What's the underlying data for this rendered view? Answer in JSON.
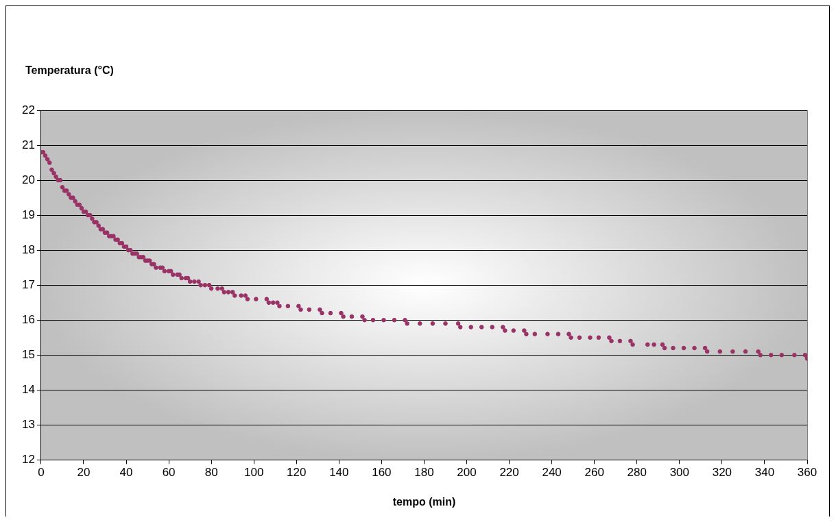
{
  "chart_data": {
    "type": "scatter",
    "xlabel": "tempo (min)",
    "ylabel": "Temperatura (°C)",
    "xlim": [
      0,
      360
    ],
    "xticks": [
      0,
      20,
      40,
      60,
      80,
      100,
      120,
      140,
      160,
      180,
      200,
      220,
      240,
      260,
      280,
      300,
      320,
      340,
      360
    ],
    "ylim": [
      12,
      22
    ],
    "yticks": [
      12,
      13,
      14,
      15,
      16,
      17,
      18,
      19,
      20,
      21,
      22
    ],
    "grid": "y",
    "legend": false,
    "marker": "circle",
    "series": [
      {
        "color": "#993366",
        "x": [
          0,
          1,
          2,
          3,
          4,
          5,
          6,
          7,
          8,
          9,
          10,
          11,
          12,
          13,
          14,
          15,
          16,
          17,
          18,
          19,
          20,
          21,
          22,
          23,
          24,
          25,
          26,
          27,
          28,
          29,
          30,
          31,
          32,
          33,
          34,
          35,
          36,
          37,
          38,
          39,
          40,
          41,
          42,
          43,
          44,
          45,
          46,
          47,
          48,
          49,
          50,
          51,
          52,
          53,
          54,
          56,
          57,
          58,
          60,
          61,
          62,
          64,
          65,
          66,
          68,
          69,
          70,
          72,
          74,
          75,
          77,
          79,
          80,
          83,
          85,
          86,
          88,
          90,
          91,
          94,
          96,
          97,
          101,
          106,
          107,
          109,
          111,
          112,
          116,
          121,
          122,
          126,
          131,
          132,
          136,
          141,
          142,
          146,
          151,
          152,
          156,
          161,
          166,
          171,
          172,
          178,
          184,
          190,
          196,
          197,
          202,
          207,
          212,
          217,
          218,
          222,
          227,
          228,
          232,
          238,
          243,
          248,
          249,
          253,
          258,
          262,
          267,
          268,
          272,
          277,
          278,
          285,
          288,
          292,
          293,
          297,
          302,
          307,
          312,
          313,
          319,
          325,
          331,
          337,
          338,
          343,
          348,
          354,
          359,
          360
        ],
        "values": [
          20.8,
          20.8,
          20.7,
          20.6,
          20.5,
          20.3,
          20.2,
          20.1,
          20.0,
          20.0,
          19.8,
          19.7,
          19.7,
          19.6,
          19.5,
          19.5,
          19.4,
          19.3,
          19.3,
          19.2,
          19.1,
          19.1,
          19.0,
          19.0,
          18.9,
          18.8,
          18.8,
          18.7,
          18.6,
          18.6,
          18.5,
          18.5,
          18.4,
          18.4,
          18.4,
          18.3,
          18.3,
          18.2,
          18.2,
          18.1,
          18.1,
          18.0,
          18.0,
          17.9,
          17.9,
          17.9,
          17.8,
          17.8,
          17.8,
          17.7,
          17.7,
          17.7,
          17.6,
          17.6,
          17.5,
          17.5,
          17.5,
          17.4,
          17.4,
          17.4,
          17.3,
          17.3,
          17.3,
          17.2,
          17.2,
          17.2,
          17.1,
          17.1,
          17.1,
          17.0,
          17.0,
          17.0,
          16.9,
          16.9,
          16.9,
          16.8,
          16.8,
          16.8,
          16.7,
          16.7,
          16.7,
          16.6,
          16.6,
          16.6,
          16.5,
          16.5,
          16.5,
          16.4,
          16.4,
          16.4,
          16.3,
          16.3,
          16.3,
          16.2,
          16.2,
          16.2,
          16.1,
          16.1,
          16.1,
          16.0,
          16.0,
          16.0,
          16.0,
          16.0,
          15.9,
          15.9,
          15.9,
          15.9,
          15.9,
          15.8,
          15.8,
          15.8,
          15.8,
          15.8,
          15.7,
          15.7,
          15.7,
          15.6,
          15.6,
          15.6,
          15.6,
          15.6,
          15.5,
          15.5,
          15.5,
          15.5,
          15.5,
          15.4,
          15.4,
          15.4,
          15.3,
          15.3,
          15.3,
          15.3,
          15.2,
          15.2,
          15.2,
          15.2,
          15.2,
          15.1,
          15.1,
          15.1,
          15.1,
          15.1,
          15.0,
          15.0,
          15.0,
          15.0,
          15.0,
          14.9
        ]
      }
    ]
  }
}
